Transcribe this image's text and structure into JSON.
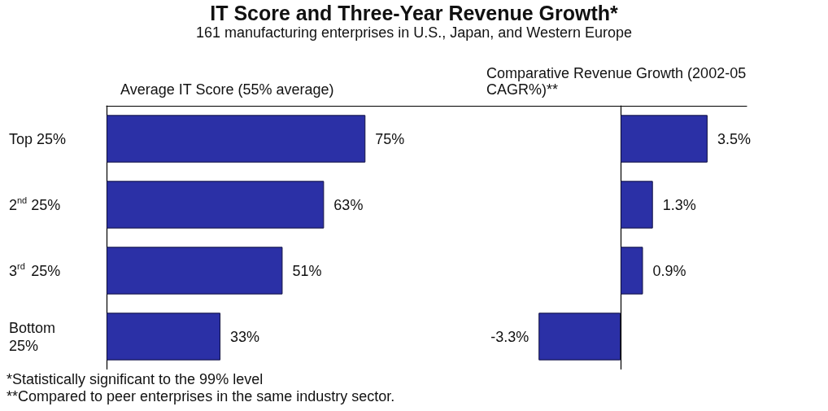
{
  "chart_data": [
    {
      "type": "bar",
      "orientation": "horizontal",
      "title": "IT Score and Three-Year Revenue Growth*",
      "subtitle": "161 manufacturing enterprises in U.S., Japan, and Western Europe",
      "xlabel": "Average IT Score (55% average)",
      "categories": [
        "Top 25%",
        "2$^{nd}$ 25%",
        "3$^{rd}$ 25%",
        "Bottom 25%"
      ],
      "values": [
        75,
        63,
        51,
        33
      ],
      "value_labels": [
        "75%",
        "63%",
        "51%",
        "33%"
      ],
      "color": "#2b30a6",
      "grid": false,
      "annotations": [
        "*Statistically significant to the 99% level",
        "**Compared to peer enterprises in the same industry sector."
      ]
    },
    {
      "type": "bar",
      "orientation": "horizontal",
      "xlabel": "Comparative Revenue Growth (2002-05 CAGR%)**",
      "categories": [
        "Top 25%",
        "2$^{nd}$ 25%",
        "3$^{rd}$ 25%",
        "Bottom 25%"
      ],
      "tick_labels": false,
      "values": [
        3.5,
        1.3,
        0.9,
        -3.3
      ],
      "value_labels": [
        "3.5%",
        "1.3%",
        "0.9%",
        "-3.3%"
      ],
      "color": "#2b30a6",
      "grid": false
    }
  ]
}
